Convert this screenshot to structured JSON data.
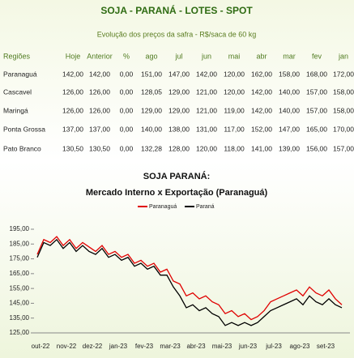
{
  "table": {
    "title": "SOJA - PARANÁ - LOTES - SPOT",
    "subtitle": "Evolução dos preços da safra - R$/saca de 60 kg",
    "headers": [
      "Regiões",
      "Hoje",
      "Anterior",
      "%",
      "ago",
      "jul",
      "jun",
      "mai",
      "abr",
      "mar",
      "fev",
      "jan"
    ],
    "rows": [
      [
        "Paranaguá",
        "142,00",
        "142,00",
        "0,00",
        "151,00",
        "147,00",
        "142,00",
        "120,00",
        "162,00",
        "158,00",
        "168,00",
        "172,00"
      ],
      [
        "Cascavel",
        "126,00",
        "126,00",
        "0,00",
        "128,05",
        "129,00",
        "121,00",
        "120,00",
        "142,00",
        "140,00",
        "157,00",
        "158,00"
      ],
      [
        "Maringá",
        "126,00",
        "126,00",
        "0,00",
        "129,00",
        "129,00",
        "121,00",
        "119,00",
        "142,00",
        "140,00",
        "157,00",
        "158,00"
      ],
      [
        "Ponta Grossa",
        "137,00",
        "137,00",
        "0,00",
        "140,00",
        "138,00",
        "131,00",
        "117,00",
        "152,00",
        "147,00",
        "165,00",
        "170,00"
      ],
      [
        "Pato Branco",
        "130,50",
        "130,50",
        "0,00",
        "132,28",
        "128,00",
        "120,00",
        "118,00",
        "141,00",
        "139,00",
        "156,00",
        "157,00"
      ]
    ]
  },
  "chart_data": {
    "type": "line",
    "title": "SOJA PARANÁ:",
    "subtitle": "Mercado Interno x Exportação (Paranaguá)",
    "categories": [
      "out-22",
      null,
      null,
      null,
      "nov-22",
      null,
      null,
      null,
      "dez-22",
      null,
      null,
      null,
      "jan-23",
      null,
      null,
      null,
      "fev-23",
      null,
      null,
      null,
      "mar-23",
      null,
      null,
      null,
      "abr-23",
      null,
      null,
      null,
      "mai-23",
      null,
      null,
      null,
      "jun-23",
      null,
      null,
      null,
      "jul-23",
      null,
      null,
      null,
      "ago-23",
      null,
      null,
      null,
      "set-23",
      null,
      null,
      null
    ],
    "series": [
      {
        "name": "Paranaguá",
        "color": "#e00000",
        "values": [
          178,
          188,
          186,
          190,
          184,
          188,
          182,
          186,
          183,
          180,
          184,
          178,
          180,
          176,
          178,
          172,
          174,
          170,
          172,
          166,
          168,
          160,
          158,
          150,
          152,
          148,
          150,
          146,
          144,
          138,
          140,
          136,
          138,
          134,
          136,
          140,
          146,
          148,
          150,
          152,
          154,
          150,
          156,
          152,
          150,
          154,
          148,
          144
        ]
      },
      {
        "name": "Paraná",
        "color": "#000000",
        "values": [
          176,
          186,
          184,
          188,
          182,
          186,
          180,
          184,
          180,
          178,
          182,
          176,
          178,
          174,
          176,
          170,
          172,
          168,
          170,
          164,
          164,
          156,
          150,
          142,
          144,
          140,
          142,
          138,
          136,
          130,
          132,
          130,
          132,
          130,
          132,
          136,
          140,
          142,
          144,
          146,
          148,
          144,
          150,
          146,
          144,
          148,
          144,
          142
        ]
      }
    ],
    "ylim": [
      125,
      195
    ],
    "yticks": [
      {
        "value": 125,
        "label": "125,00"
      },
      {
        "value": 135,
        "label": "135,00"
      },
      {
        "value": 145,
        "label": "145,00"
      },
      {
        "value": 155,
        "label": "155,00"
      },
      {
        "value": 165,
        "label": "165,00"
      },
      {
        "value": 175,
        "label": "175,00"
      },
      {
        "value": 185,
        "label": "185,00"
      },
      {
        "value": 195,
        "label": "195,00"
      }
    ],
    "legend": "top"
  }
}
